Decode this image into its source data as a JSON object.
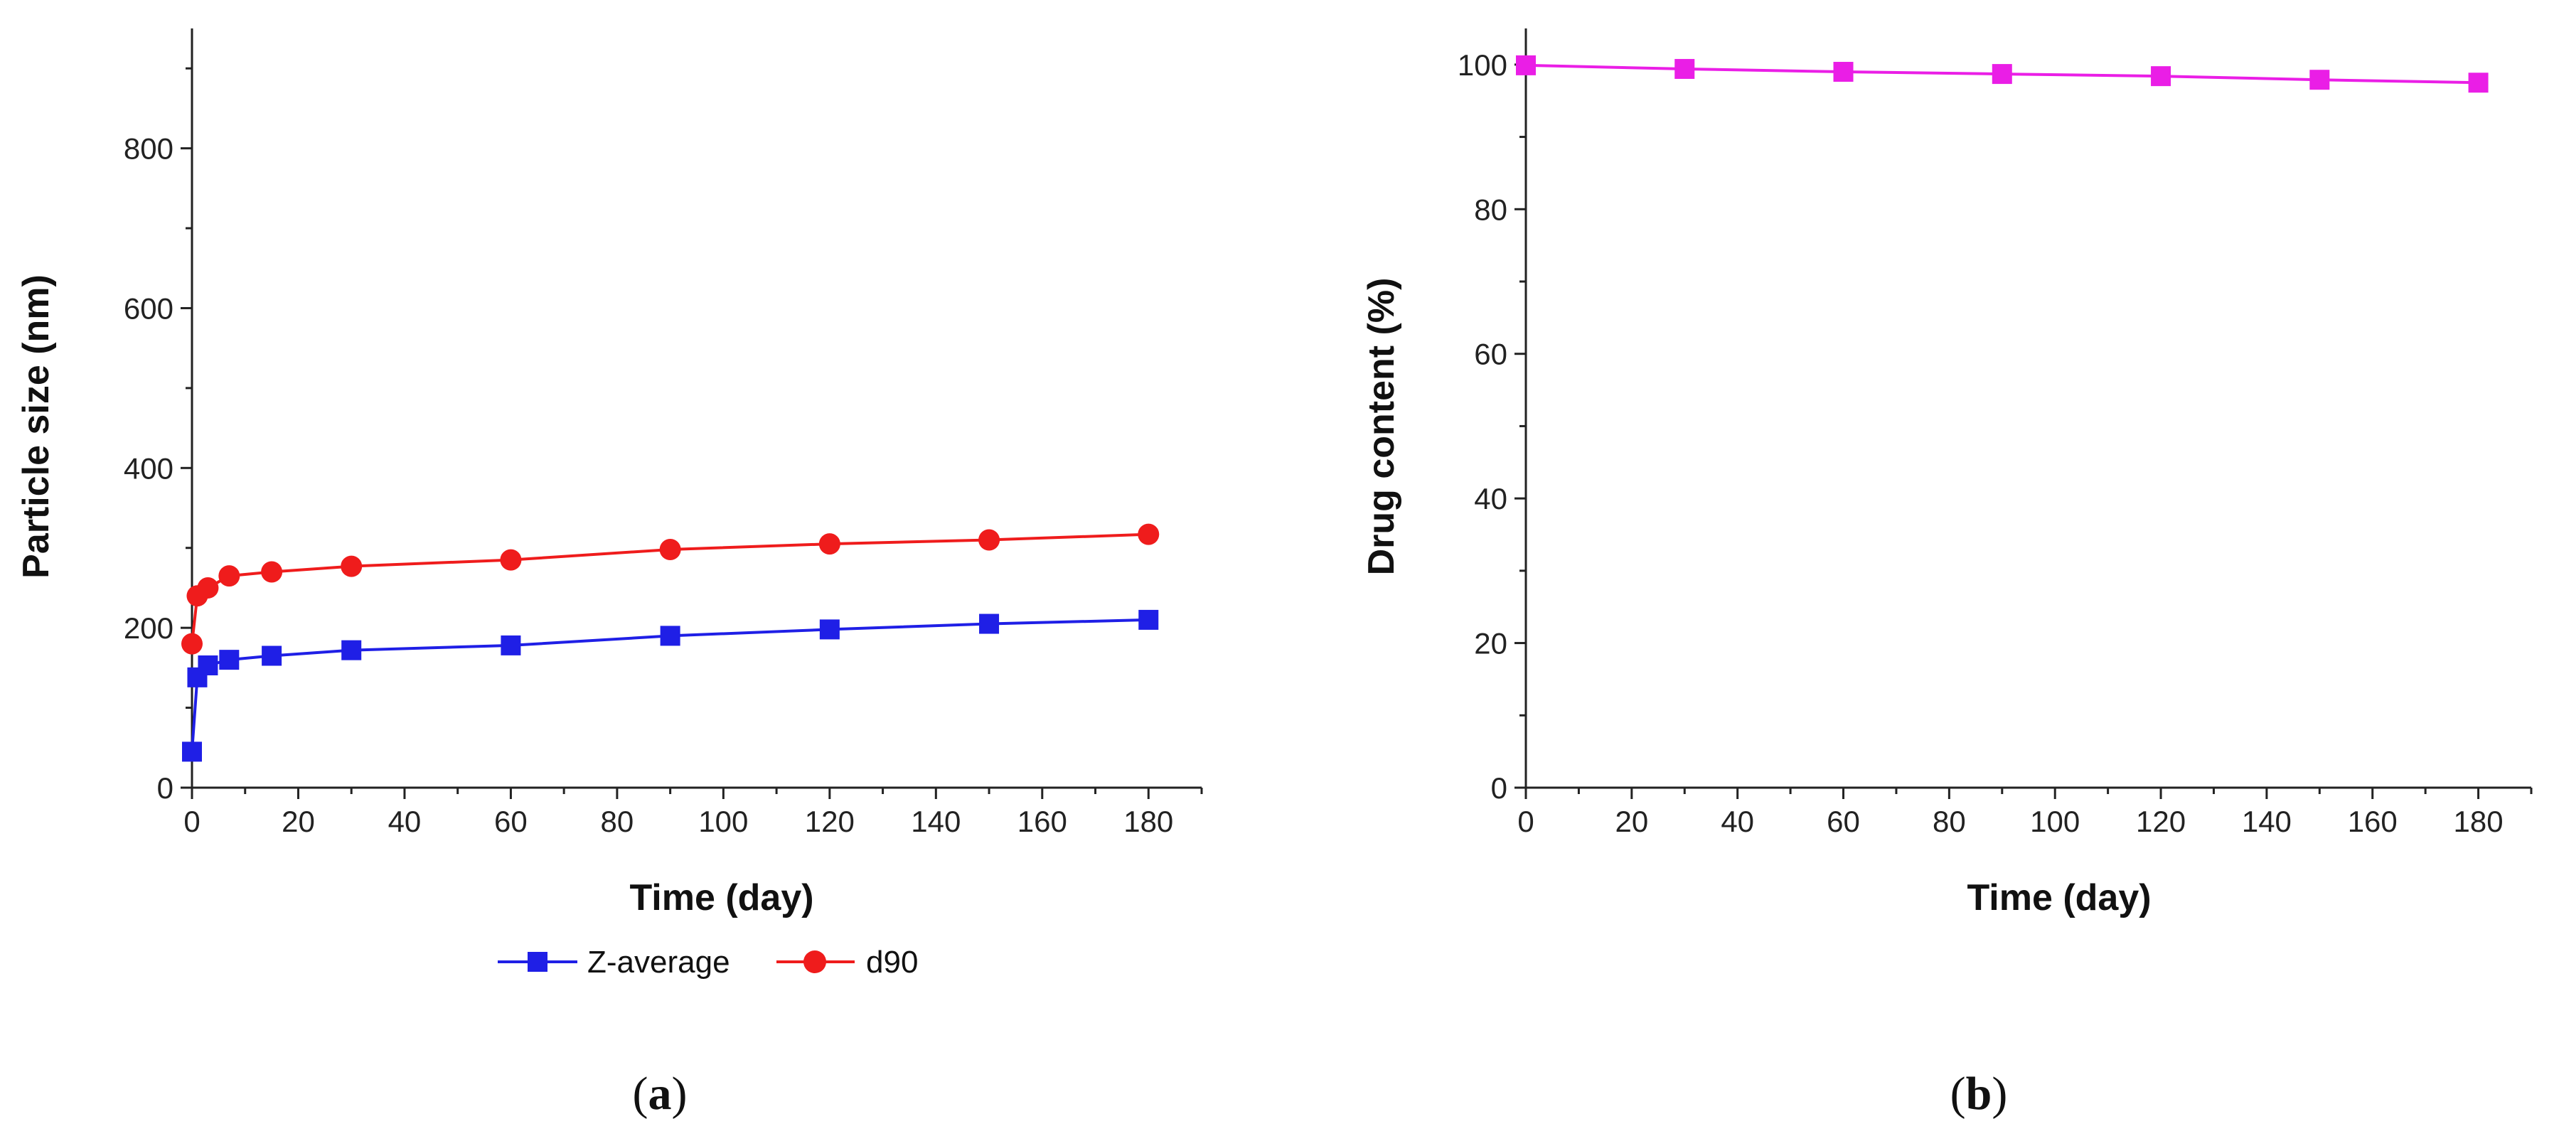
{
  "chart_data": [
    {
      "id": "a",
      "type": "line",
      "panel_label": "a",
      "title": "",
      "xlabel": "Time (day)",
      "ylabel": "Particle size (nm)",
      "xlim": [
        0,
        190
      ],
      "ylim": [
        0,
        950
      ],
      "xticks": [
        0,
        20,
        40,
        60,
        80,
        100,
        120,
        140,
        160,
        180
      ],
      "yticks": [
        0,
        200,
        400,
        600,
        800
      ],
      "grid": false,
      "legend_position": "bottom",
      "series": [
        {
          "name": "Z-average",
          "color": "#1f1fe6",
          "marker": "square",
          "x": [
            0,
            1,
            3,
            7,
            15,
            30,
            60,
            90,
            120,
            150,
            180
          ],
          "y": [
            45,
            138,
            153,
            160,
            165,
            172,
            178,
            190,
            198,
            205,
            210
          ]
        },
        {
          "name": "d90",
          "color": "#ef1c1c",
          "marker": "circle",
          "x": [
            0,
            1,
            3,
            7,
            15,
            30,
            60,
            90,
            120,
            150,
            180
          ],
          "y": [
            180,
            240,
            250,
            265,
            270,
            277,
            285,
            298,
            305,
            310,
            317
          ]
        }
      ]
    },
    {
      "id": "b",
      "type": "line",
      "panel_label": "b",
      "title": "",
      "xlabel": "Time (day)",
      "ylabel": "Drug content (%)",
      "xlim": [
        0,
        190
      ],
      "ylim": [
        0,
        105
      ],
      "xticks": [
        0,
        20,
        40,
        60,
        80,
        100,
        120,
        140,
        160,
        180
      ],
      "yticks": [
        0,
        20,
        40,
        60,
        80,
        100
      ],
      "grid": false,
      "legend_position": "none",
      "series": [
        {
          "name": "Drug content",
          "color": "#ea1ee6",
          "marker": "square",
          "x": [
            0,
            30,
            60,
            90,
            120,
            150,
            180
          ],
          "y": [
            99.9,
            99.4,
            99.0,
            98.7,
            98.4,
            97.9,
            97.5
          ]
        }
      ]
    }
  ]
}
